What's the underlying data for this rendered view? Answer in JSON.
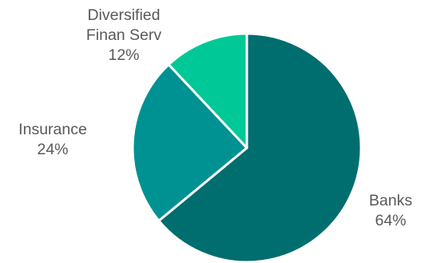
{
  "chart_data": {
    "type": "pie",
    "start_angle_deg": 0,
    "direction": "clockwise",
    "slices": [
      {
        "name": "Banks",
        "value": 64,
        "pct_label": "64%",
        "label_lines": [
          "Banks"
        ],
        "color": "#006D6F"
      },
      {
        "name": "Insurance",
        "value": 24,
        "pct_label": "24%",
        "label_lines": [
          "Insurance"
        ],
        "color": "#009192"
      },
      {
        "name": "Diversified Finan Serv",
        "value": 12,
        "pct_label": "12%",
        "label_lines": [
          "Diversified",
          "Finan Serv"
        ],
        "color": "#00C896"
      }
    ],
    "border_color": "#FFFFFF",
    "label_color": "#595959"
  }
}
